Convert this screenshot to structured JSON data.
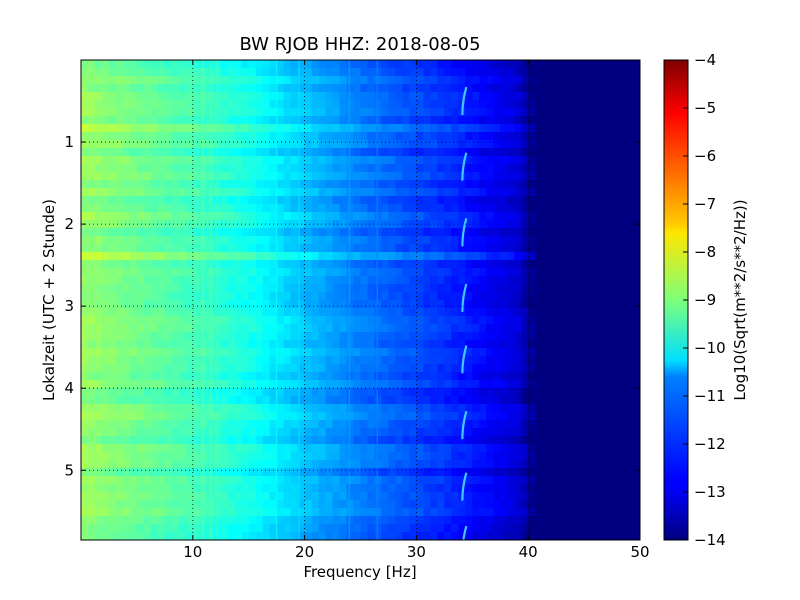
{
  "chart_data": {
    "type": "heatmap",
    "title": "BW RJOB HHZ: 2018-08-05",
    "xlabel": "Frequency [Hz]",
    "ylabel": "Lokalzeit (UTC + 2 Stunde)",
    "xlim": [
      0,
      50
    ],
    "ylim": [
      5.85,
      0
    ],
    "x_ticks": [
      10,
      20,
      30,
      40,
      50
    ],
    "y_ticks": [
      1,
      2,
      3,
      4,
      5
    ],
    "grid": true,
    "colormap": "jet",
    "colorbar": {
      "label": "Log10(Sqrt(m**2/s**2/Hz))",
      "range": [
        -14,
        -4
      ],
      "ticks": [
        -4,
        -5,
        -6,
        -7,
        -8,
        -9,
        -10,
        -11,
        -12,
        -13,
        -14
      ]
    },
    "level_profile": {
      "frequency_hz": [
        0,
        5,
        10,
        15,
        20,
        25,
        30,
        33,
        36,
        39,
        40.5,
        50
      ],
      "log10_amplitude": [
        -8.8,
        -9.2,
        -9.6,
        -10.1,
        -10.9,
        -11.6,
        -12.1,
        -12.4,
        -12.8,
        -13.2,
        -14,
        -14
      ]
    },
    "narrowband_lines_hz": [
      10.9,
      11.6,
      12.2,
      17.5,
      19.5,
      24.0,
      26.5
    ],
    "spectral_feature_hz": 34.2,
    "spectral_feature_times_h": [
      0.35,
      1.15,
      1.95,
      2.75,
      3.5,
      4.3,
      5.05,
      5.7
    ]
  }
}
